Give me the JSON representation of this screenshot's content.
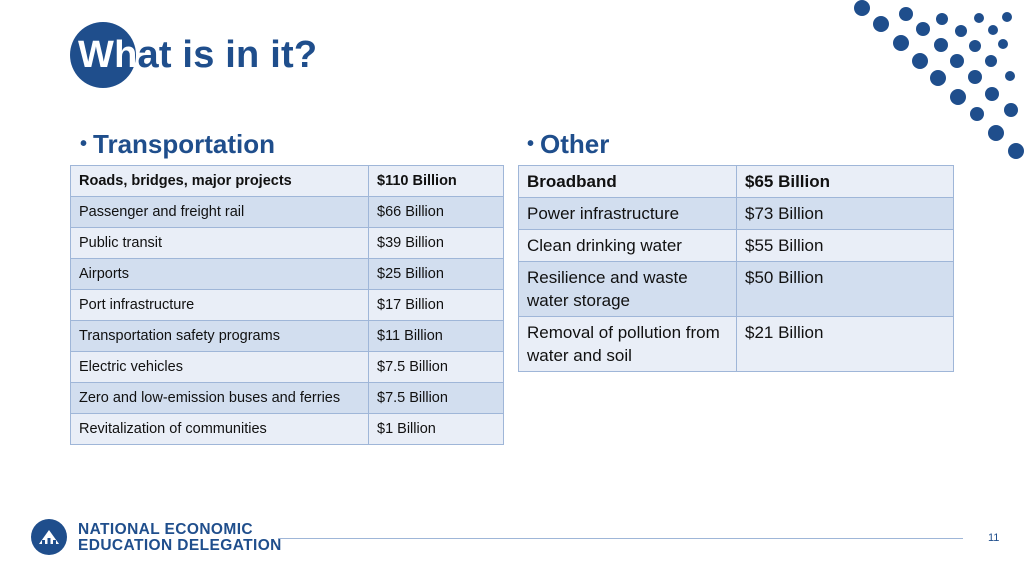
{
  "slide": {
    "title": "What is in it?",
    "title_part1": "Wh",
    "title_part2": "at is in it?",
    "page_number": "11"
  },
  "transportation": {
    "heading": "Transportation",
    "rows": [
      {
        "item": "Roads, bridges, major projects",
        "amount": "$110 Billion"
      },
      {
        "item": "Passenger and freight rail",
        "amount": "$66 Billion"
      },
      {
        "item": "Public transit",
        "amount": "$39 Billion"
      },
      {
        "item": "Airports",
        "amount": "$25 Billion"
      },
      {
        "item": "Port infrastructure",
        "amount": "$17 Billion"
      },
      {
        "item": "Transportation safety programs",
        "amount": "$11 Billion"
      },
      {
        "item": "Electric vehicles",
        "amount": "$7.5 Billion"
      },
      {
        "item": "Zero and low-emission buses and ferries",
        "amount": "$7.5 Billion"
      },
      {
        "item": "Revitalization of communities",
        "amount": "$1 Billion"
      }
    ]
  },
  "other": {
    "heading": "Other",
    "rows": [
      {
        "item": "Broadband",
        "amount": "$65 Billion"
      },
      {
        "item": "Power infrastructure",
        "amount": "$73 Billion"
      },
      {
        "item": "Clean drinking water",
        "amount": "$55 Billion"
      },
      {
        "item": "Resilience and waste water storage",
        "amount": "$50 Billion"
      },
      {
        "item": "Removal of pollution from water and soil",
        "amount": "$21 Billion"
      }
    ]
  },
  "logo": {
    "line1": "NATIONAL ECONOMIC",
    "line2": "EDUCATION DELEGATION"
  },
  "colors": {
    "brand_blue": "#1f4e8c",
    "row_light": "#e9eef7",
    "row_dark": "#d2deef",
    "border": "#9fb6d8"
  },
  "icons": [
    "bullet",
    "dot-pattern-decoration",
    "organization-logo-icon"
  ]
}
